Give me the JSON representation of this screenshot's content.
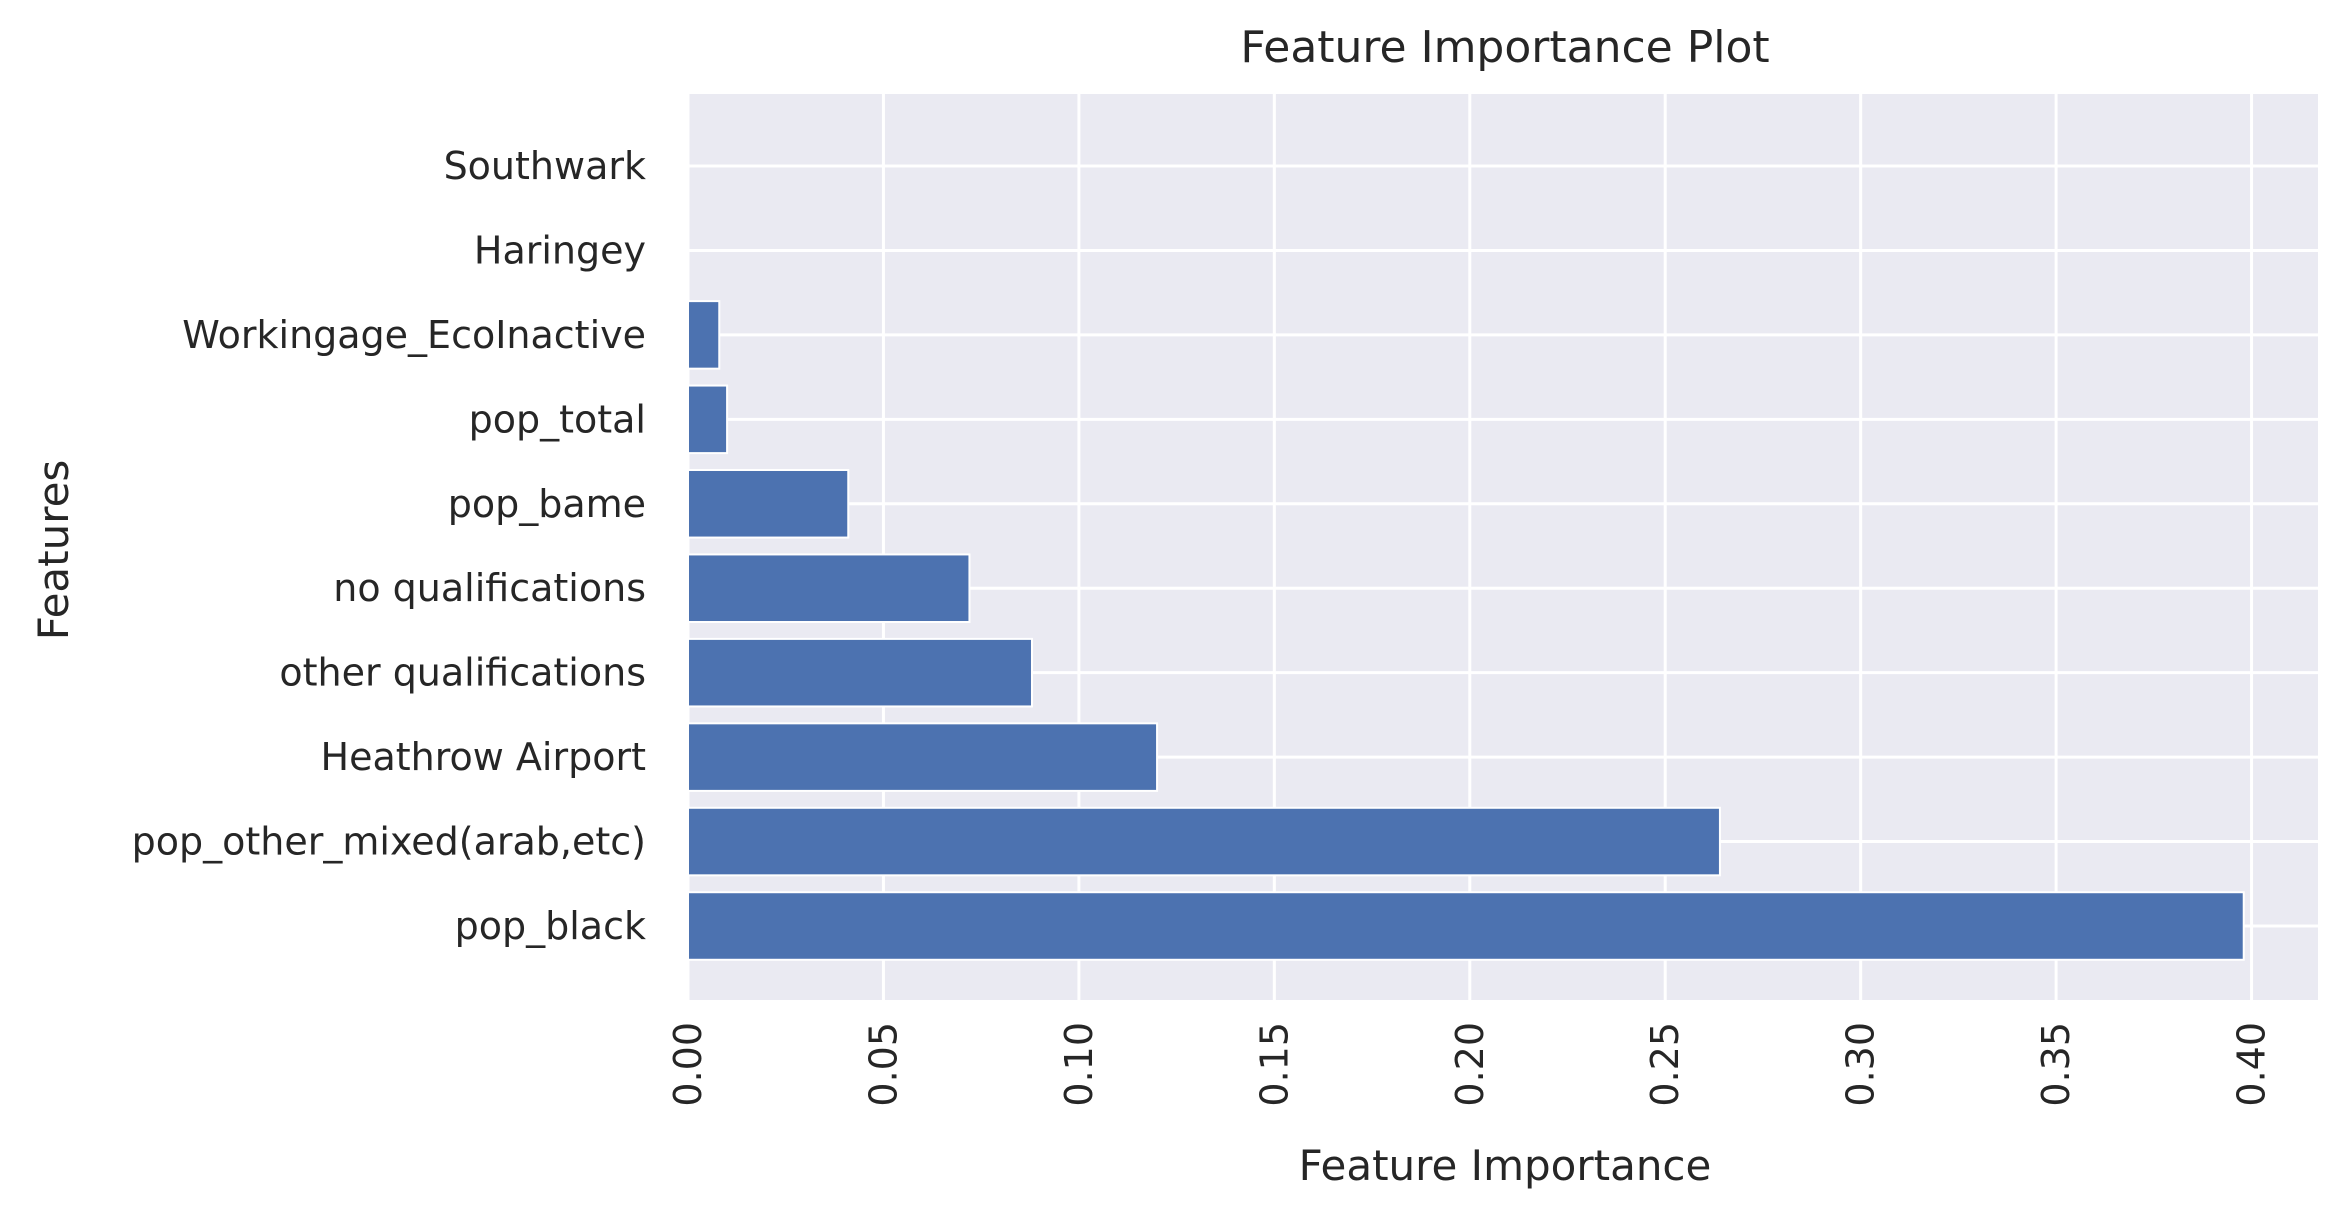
{
  "chart_data": {
    "type": "bar",
    "orientation": "horizontal",
    "title": "Feature Importance Plot",
    "xlabel": "Feature Importance",
    "ylabel": "Features",
    "categories": [
      "pop_black",
      "pop_other_mixed(arab,etc)",
      "Heathrow Airport",
      "other qualifications",
      "no qualifications",
      "pop_bame",
      "pop_total",
      "Workingage_EcoInactive",
      "Haringey",
      "Southwark"
    ],
    "values": [
      0.398,
      0.264,
      0.12,
      0.088,
      0.072,
      0.041,
      0.01,
      0.008,
      0.0,
      0.0
    ],
    "xlim": [
      0,
      0.417
    ],
    "xticks": [
      "0.00",
      "0.05",
      "0.10",
      "0.15",
      "0.20",
      "0.25",
      "0.30",
      "0.35",
      "0.40"
    ],
    "xtick_values": [
      0,
      0.05,
      0.1,
      0.15,
      0.2,
      0.25,
      0.3,
      0.35,
      0.4
    ],
    "grid": true,
    "colors": {
      "bar": "#4c72b0",
      "bar_edge": "#ffffff",
      "plot_background": "#eaeaf2",
      "grid": "#ffffff",
      "text": "#262626"
    }
  }
}
